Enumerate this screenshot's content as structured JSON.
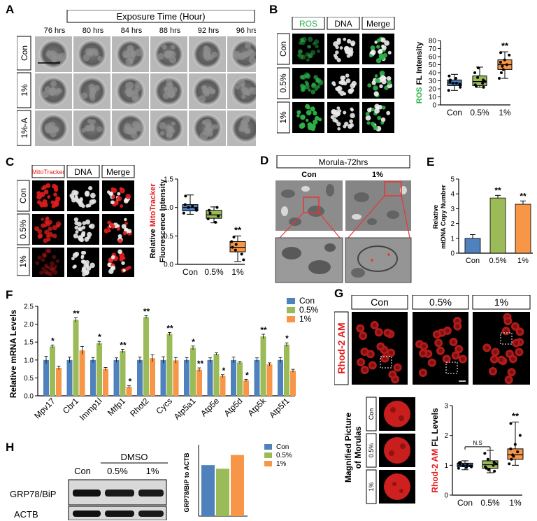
{
  "panels": {
    "A": {
      "letter": "A",
      "header": "Exposure Time (Hour)",
      "times": [
        "76 hrs",
        "80 hrs",
        "84 hrs",
        "88 hrs",
        "92 hrs",
        "96 hrs"
      ],
      "rows": [
        "Con",
        "1%",
        "1%-A"
      ]
    },
    "B": {
      "letter": "B",
      "cols": [
        "ROS",
        "DNA",
        "Merge"
      ],
      "rows": [
        "Con",
        "0.5%",
        "1%"
      ],
      "colors": {
        "ros": "#2db34a"
      }
    },
    "C": {
      "letter": "C",
      "cols": [
        "MitoTracker",
        "DNA",
        "Merge"
      ],
      "rows": [
        "Con",
        "0.5%",
        "1%"
      ],
      "colors": {
        "mito": "#e31d1d"
      }
    },
    "D": {
      "letter": "D",
      "title": "Morula-72hrs",
      "cols": [
        "Con",
        "1%"
      ]
    },
    "E": {
      "letter": "E"
    },
    "F": {
      "letter": "F"
    },
    "G": {
      "letter": "G",
      "cols": [
        "Con",
        "0.5%",
        "1%"
      ],
      "side_label": "Rhod-2 AM",
      "mag_label_1": "Magnified Picture",
      "mag_label_2": "of Morulas",
      "mag_rows": [
        "Con",
        "0.5%",
        "1%"
      ]
    },
    "H": {
      "letter": "H",
      "dmso_label": "DMSO",
      "lanes": [
        "Con",
        "0.5%",
        "1%"
      ],
      "rows": [
        "GRP78/BiP",
        "ACTB"
      ]
    }
  },
  "chart_data": [
    {
      "id": "B",
      "type": "box",
      "ylabel_colored": "ROS",
      "ylabel_rest": " FL Intensity",
      "categories": [
        "Con",
        "0.5%",
        "1%"
      ],
      "ylim": [
        0,
        80
      ],
      "yticks": [
        0,
        10,
        20,
        30,
        40,
        50,
        60,
        70,
        80
      ],
      "colors": [
        "#4f81bd",
        "#9bbb59",
        "#f79646"
      ],
      "boxes": [
        {
          "min": 18,
          "q1": 24,
          "median": 27,
          "q3": 31,
          "max": 38
        },
        {
          "min": 22,
          "q1": 24,
          "median": 29,
          "q3": 36,
          "max": 47
        },
        {
          "min": 33,
          "q1": 44,
          "median": 50,
          "q3": 56,
          "max": 66
        }
      ],
      "points": [
        [
          18,
          22,
          25,
          27,
          27,
          29,
          31,
          33,
          36
        ],
        [
          22,
          23,
          25,
          27,
          29,
          31,
          34,
          40,
          46
        ],
        [
          33,
          40,
          44,
          48,
          50,
          53,
          56,
          62,
          65
        ]
      ],
      "sig": [
        "",
        "",
        "**"
      ]
    },
    {
      "id": "C",
      "type": "box",
      "ylabel_1_pre": "Relative ",
      "ylabel_1_colored": "MitoTracker",
      "ylabel_2": "Fluorescence Intensity",
      "categories": [
        "Con",
        "0.5%",
        "1%"
      ],
      "ylim": [
        0,
        1.5
      ],
      "yticks": [
        0,
        0.5,
        1.0,
        1.5
      ],
      "colors": [
        "#4f81bd",
        "#9bbb59",
        "#f79646"
      ],
      "boxes": [
        {
          "min": 0.88,
          "q1": 0.94,
          "median": 1.0,
          "q3": 1.05,
          "max": 1.22
        },
        {
          "min": 0.73,
          "q1": 0.81,
          "median": 0.87,
          "q3": 0.95,
          "max": 1.01
        },
        {
          "min": 0.05,
          "q1": 0.22,
          "median": 0.3,
          "q3": 0.4,
          "max": 0.5
        }
      ],
      "points": [
        [
          0.9,
          0.95,
          0.98,
          1.0,
          1.02,
          1.05,
          1.2
        ],
        [
          0.74,
          0.8,
          0.85,
          0.9,
          0.95,
          1.0
        ],
        [
          0.08,
          0.18,
          0.25,
          0.3,
          0.35,
          0.4,
          0.48
        ]
      ],
      "sig": [
        "",
        "",
        "**"
      ]
    },
    {
      "id": "E",
      "type": "bar",
      "ylabel_1": "Relative",
      "ylabel_2": "mtDNA Copy Number",
      "categories": [
        "Con",
        "0.5%",
        "1%"
      ],
      "ylim": [
        0,
        5
      ],
      "yticks": [
        0,
        1,
        2,
        3,
        4,
        5
      ],
      "colors": [
        "#4f81bd",
        "#9bbb59",
        "#f79646"
      ],
      "values": [
        1.0,
        3.72,
        3.3
      ],
      "errors": [
        0.25,
        0.18,
        0.22
      ],
      "sig": [
        "",
        "**",
        "**"
      ]
    },
    {
      "id": "F",
      "type": "bar",
      "ylabel": "Relative mRNA Levels",
      "categories": [
        "Mpv17",
        "Cbr1",
        "Immp1l",
        "Mtfp1",
        "Rhot2",
        "Cycs",
        "Atp5a1",
        "Atp5e",
        "Atp5d",
        "Atp5k",
        "Atp5f1"
      ],
      "ylim": [
        0,
        2.5
      ],
      "yticks": [
        0,
        0.5,
        1.0,
        1.5,
        2.0,
        2.5
      ],
      "series": [
        {
          "name": "Con",
          "color": "#4f81bd",
          "values": [
            1.0,
            1.0,
            1.0,
            1.0,
            1.0,
            1.0,
            1.0,
            1.0,
            1.0,
            1.0,
            1.0
          ],
          "errors": [
            0.1,
            0.08,
            0.07,
            0.06,
            0.08,
            0.09,
            0.07,
            0.06,
            0.08,
            0.06,
            0.07
          ]
        },
        {
          "name": "0.5%",
          "color": "#9bbb59",
          "values": [
            1.38,
            2.12,
            1.47,
            1.25,
            2.2,
            1.73,
            1.34,
            1.17,
            0.93,
            1.66,
            1.43
          ],
          "errors": [
            0.04,
            0.06,
            0.05,
            0.05,
            0.04,
            0.04,
            0.05,
            0.03,
            0.03,
            0.06,
            0.05
          ]
        },
        {
          "name": "1%",
          "color": "#f79646",
          "values": [
            0.78,
            1.27,
            0.75,
            0.25,
            1.05,
            0.99,
            0.73,
            0.55,
            0.43,
            0.88,
            0.7
          ],
          "errors": [
            0.05,
            0.11,
            0.04,
            0.03,
            0.1,
            0.08,
            0.05,
            0.04,
            0.03,
            0.04,
            0.04
          ]
        }
      ],
      "sig05": [
        "*",
        "**",
        "*",
        "**",
        "**",
        "**",
        "*",
        "",
        "",
        "**",
        "*"
      ],
      "sig1": [
        "",
        "",
        "",
        "*",
        "",
        "",
        "**",
        "*",
        "*",
        "",
        ""
      ]
    },
    {
      "id": "G",
      "type": "box",
      "ylabel_colored": "Rhod-2 AM",
      "ylabel_rest": " FL Levels",
      "categories": [
        "Con",
        "0.5%",
        "1%"
      ],
      "ylim": [
        0,
        3
      ],
      "yticks": [
        0,
        1,
        2,
        3
      ],
      "colors": [
        "#4f81bd",
        "#9bbb59",
        "#f79646"
      ],
      "boxes": [
        {
          "min": 0.85,
          "q1": 0.95,
          "median": 1.0,
          "q3": 1.07,
          "max": 1.15
        },
        {
          "min": 0.75,
          "q1": 0.9,
          "median": 1.02,
          "q3": 1.15,
          "max": 1.5
        },
        {
          "min": 1.0,
          "q1": 1.2,
          "median": 1.35,
          "q3": 1.55,
          "max": 2.45
        }
      ],
      "points": [
        [
          0.9,
          0.95,
          0.98,
          1.0,
          1.02,
          1.05,
          1.1,
          0.93,
          1.08
        ],
        [
          0.8,
          0.9,
          0.95,
          1.0,
          1.05,
          1.1,
          1.2,
          1.4,
          0.85
        ],
        [
          1.05,
          1.2,
          1.3,
          1.35,
          1.45,
          1.55,
          1.7,
          2.0,
          2.4
        ]
      ],
      "ns_label": "N.S",
      "sig": [
        "",
        "",
        "**"
      ]
    },
    {
      "id": "H",
      "type": "bar",
      "ylabel": "GRP78/BiP to ACTB",
      "ylim": [
        0,
        1.4
      ],
      "series": [
        {
          "name": "Con",
          "color": "#4f81bd",
          "value": 1.0
        },
        {
          "name": "0.5%",
          "color": "#9bbb59",
          "value": 0.93
        },
        {
          "name": "1%",
          "color": "#f79646",
          "value": 1.2
        }
      ]
    }
  ]
}
